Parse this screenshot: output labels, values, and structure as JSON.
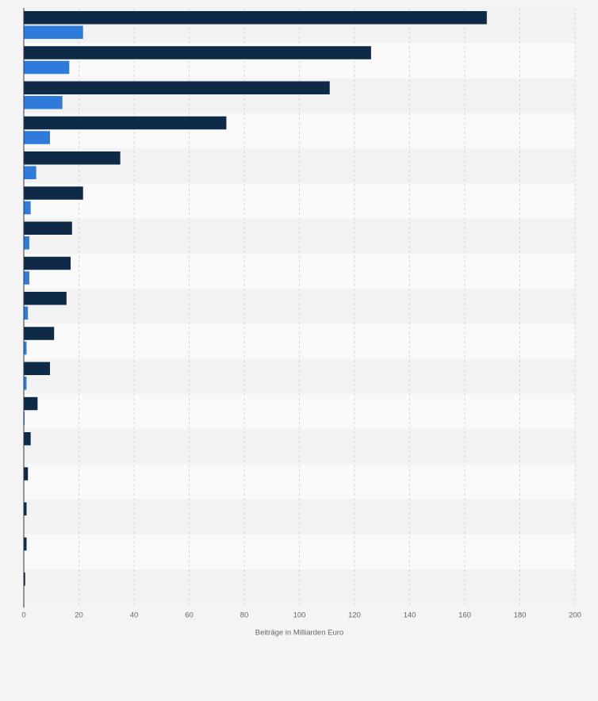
{
  "chart_data": {
    "type": "bar",
    "orientation": "horizontal",
    "xlabel": "Beiträge in Milliarden Euro",
    "xlim": [
      0,
      200
    ],
    "ticks": [
      0,
      20,
      40,
      60,
      80,
      100,
      120,
      140,
      160,
      180,
      200
    ],
    "grid": true,
    "series": [
      {
        "color": "#0e2a47",
        "values": [
          168,
          126,
          111,
          73.5,
          35,
          21.5,
          17.5,
          17,
          15.5,
          11,
          9.5,
          5,
          2.5,
          1.5,
          1,
          1,
          0.5
        ]
      },
      {
        "color": "#2f7bdb",
        "values": [
          21.5,
          16.5,
          14,
          9.5,
          4.5,
          2.5,
          2,
          2,
          1.5,
          1,
          1,
          0.3,
          0,
          0,
          0,
          0,
          0
        ]
      }
    ]
  }
}
